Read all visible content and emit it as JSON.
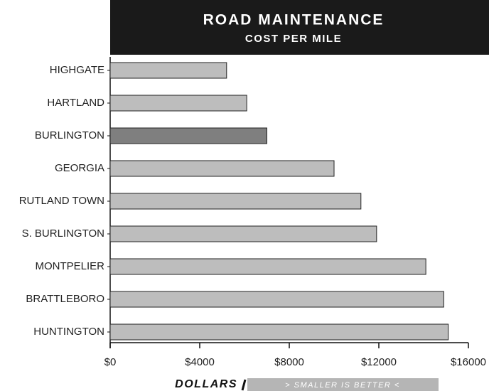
{
  "chart_data": {
    "type": "bar",
    "orientation": "horizontal",
    "title": "ROAD MAINTENANCE",
    "subtitle": "COST PER MILE",
    "x_label": "DOLLARS",
    "annotation": "> SMALLER IS BETTER <",
    "categories": [
      "HIGHGATE",
      "HARTLAND",
      "BURLINGTON",
      "GEORGIA",
      "RUTLAND TOWN",
      "S. BURLINGTON",
      "MONTPELIER",
      "BRATTLEBORO",
      "HUNTINGTON"
    ],
    "values": [
      5200,
      6100,
      7000,
      10000,
      11200,
      11900,
      14100,
      14900,
      15100
    ],
    "colors": [
      "#bdbdbd",
      "#bdbdbd",
      "#7f7f7f",
      "#bdbdbd",
      "#bdbdbd",
      "#bdbdbd",
      "#bdbdbd",
      "#bdbdbd",
      "#bdbdbd"
    ],
    "xlim": [
      0,
      16000
    ],
    "xticks": [
      {
        "value": 0,
        "label": "$0"
      },
      {
        "value": 4000,
        "label": "$4000"
      },
      {
        "value": 8000,
        "label": "$8000"
      },
      {
        "value": 12000,
        "label": "$12000"
      },
      {
        "value": 16000,
        "label": "$16000"
      }
    ],
    "grid": false
  }
}
